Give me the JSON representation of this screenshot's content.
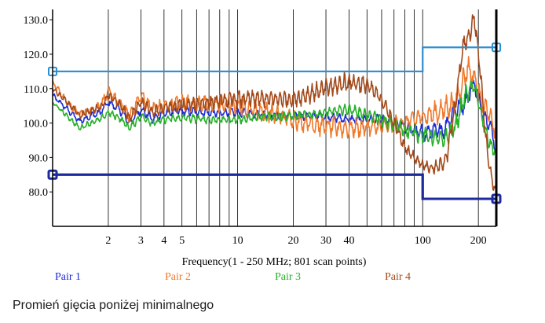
{
  "chart_data": {
    "type": "line",
    "x_scale": "log",
    "xlabel": "Frequency(1 - 250 MHz; 801 scan points)",
    "xlim": [
      1,
      250
    ],
    "ylim": [
      70,
      133
    ],
    "x_tick_labels": [
      {
        "value": 2,
        "label": "2"
      },
      {
        "value": 3,
        "label": "3"
      },
      {
        "value": 4,
        "label": "4"
      },
      {
        "value": 5,
        "label": "5"
      },
      {
        "value": 10,
        "label": "10"
      },
      {
        "value": 20,
        "label": "20"
      },
      {
        "value": 30,
        "label": "30"
      },
      {
        "value": 40,
        "label": "40"
      },
      {
        "value": 100,
        "label": "100"
      },
      {
        "value": 200,
        "label": "200"
      }
    ],
    "x_gridlines": [
      2,
      3,
      4,
      5,
      6,
      7,
      8,
      9,
      10,
      20,
      30,
      40,
      50,
      60,
      70,
      80,
      90,
      100,
      200
    ],
    "y_ticks": [
      {
        "value": 80,
        "label": "80.0"
      },
      {
        "value": 90,
        "label": "90.0"
      },
      {
        "value": 100,
        "label": "100.0"
      },
      {
        "value": 110,
        "label": "110.0"
      },
      {
        "value": 120,
        "label": "120.0"
      },
      {
        "value": 130,
        "label": "130.0"
      }
    ],
    "limit_lines": [
      {
        "name": "upper-limit",
        "color": "#2e8fd0",
        "points": [
          [
            1,
            115
          ],
          [
            100,
            115
          ],
          [
            100,
            122
          ],
          [
            250,
            122
          ]
        ]
      },
      {
        "name": "lower-limit",
        "color": "#1c2a9e",
        "points": [
          [
            1,
            85
          ],
          [
            100,
            85
          ],
          [
            100,
            78
          ],
          [
            250,
            78
          ]
        ]
      }
    ],
    "series": [
      {
        "name": "Pair 1",
        "color": "#1c2bd6",
        "anchors": [
          [
            1,
            108
          ],
          [
            1.2,
            104
          ],
          [
            1.4,
            100.5
          ],
          [
            1.6,
            102
          ],
          [
            1.8,
            103
          ],
          [
            2,
            106
          ],
          [
            2.3,
            104
          ],
          [
            2.6,
            100
          ],
          [
            3,
            104
          ],
          [
            3.5,
            101
          ],
          [
            4,
            103
          ],
          [
            5,
            103.5
          ],
          [
            7,
            103
          ],
          [
            10,
            103
          ],
          [
            15,
            102.5
          ],
          [
            20,
            102
          ],
          [
            30,
            102
          ],
          [
            40,
            101
          ],
          [
            60,
            101
          ],
          [
            80,
            99
          ],
          [
            100,
            97
          ],
          [
            130,
            98
          ],
          [
            150,
            104
          ],
          [
            170,
            106
          ],
          [
            190,
            112
          ],
          [
            210,
            103
          ],
          [
            230,
            100
          ],
          [
            250,
            92
          ]
        ],
        "ripple": [
          [
            1,
            0.8
          ],
          [
            3,
            1.4
          ],
          [
            20,
            1.2
          ],
          [
            60,
            1.4
          ],
          [
            150,
            3
          ],
          [
            250,
            2
          ]
        ]
      },
      {
        "name": "Pair 2",
        "color": "#f07a2c",
        "anchors": [
          [
            1,
            112
          ],
          [
            1.2,
            106
          ],
          [
            1.4,
            102.5
          ],
          [
            1.6,
            104
          ],
          [
            1.8,
            105
          ],
          [
            2,
            109
          ],
          [
            2.3,
            106
          ],
          [
            2.6,
            102
          ],
          [
            3,
            108
          ],
          [
            3.5,
            104
          ],
          [
            4,
            105
          ],
          [
            5,
            106
          ],
          [
            7,
            105.5
          ],
          [
            10,
            105
          ],
          [
            15,
            103
          ],
          [
            20,
            101
          ],
          [
            30,
            99
          ],
          [
            40,
            98.5
          ],
          [
            60,
            99
          ],
          [
            80,
            100
          ],
          [
            100,
            102
          ],
          [
            120,
            103
          ],
          [
            150,
            106
          ],
          [
            175,
            116
          ],
          [
            190,
            113
          ],
          [
            210,
            106
          ],
          [
            230,
            102
          ],
          [
            250,
            97
          ]
        ],
        "ripple": [
          [
            1,
            0.8
          ],
          [
            3,
            2
          ],
          [
            10,
            2.5
          ],
          [
            30,
            3
          ],
          [
            80,
            2.5
          ],
          [
            150,
            4
          ],
          [
            250,
            3
          ]
        ]
      },
      {
        "name": "Pair 3",
        "color": "#28b028",
        "anchors": [
          [
            1,
            106
          ],
          [
            1.2,
            102
          ],
          [
            1.4,
            98.5
          ],
          [
            1.6,
            100
          ],
          [
            1.8,
            101
          ],
          [
            2,
            103
          ],
          [
            2.3,
            101.5
          ],
          [
            2.6,
            98.5
          ],
          [
            3,
            102
          ],
          [
            3.5,
            100
          ],
          [
            4,
            101
          ],
          [
            5,
            101.5
          ],
          [
            7,
            101
          ],
          [
            10,
            101
          ],
          [
            15,
            102
          ],
          [
            20,
            102
          ],
          [
            30,
            103
          ],
          [
            40,
            104
          ],
          [
            60,
            101
          ],
          [
            80,
            98
          ],
          [
            100,
            96.5
          ],
          [
            130,
            95
          ],
          [
            150,
            99
          ],
          [
            170,
            108
          ],
          [
            190,
            111
          ],
          [
            210,
            101
          ],
          [
            230,
            94
          ],
          [
            250,
            91
          ]
        ],
        "ripple": [
          [
            1,
            0.6
          ],
          [
            3,
            1.2
          ],
          [
            20,
            1.3
          ],
          [
            50,
            1.6
          ],
          [
            150,
            3
          ],
          [
            250,
            2
          ]
        ]
      },
      {
        "name": "Pair 4",
        "color": "#a3491a",
        "anchors": [
          [
            1,
            110
          ],
          [
            1.2,
            106
          ],
          [
            1.4,
            102
          ],
          [
            1.6,
            103.5
          ],
          [
            1.8,
            104.5
          ],
          [
            2,
            108
          ],
          [
            2.3,
            105.5
          ],
          [
            2.6,
            101.5
          ],
          [
            3,
            106
          ],
          [
            3.5,
            103
          ],
          [
            4,
            104.5
          ],
          [
            5,
            105
          ],
          [
            7,
            106
          ],
          [
            10,
            107
          ],
          [
            15,
            107
          ],
          [
            20,
            107
          ],
          [
            30,
            110
          ],
          [
            40,
            112
          ],
          [
            50,
            111
          ],
          [
            60,
            107
          ],
          [
            70,
            100
          ],
          [
            80,
            93
          ],
          [
            90,
            90
          ],
          [
            100,
            88
          ],
          [
            110,
            87
          ],
          [
            120,
            87
          ],
          [
            135,
            90
          ],
          [
            150,
            105
          ],
          [
            165,
            122
          ],
          [
            180,
            126
          ],
          [
            190,
            131
          ],
          [
            205,
            115
          ],
          [
            220,
            95
          ],
          [
            235,
            84
          ],
          [
            250,
            80
          ]
        ],
        "ripple": [
          [
            1,
            0.8
          ],
          [
            3,
            1.6
          ],
          [
            10,
            2.5
          ],
          [
            20,
            2.5
          ],
          [
            40,
            3
          ],
          [
            60,
            2
          ],
          [
            100,
            1.5
          ],
          [
            150,
            3
          ],
          [
            250,
            2
          ]
        ]
      }
    ],
    "legend": [
      "Pair 1",
      "Pair 2",
      "Pair 3",
      "Pair 4"
    ]
  },
  "caption": "Promień gięcia poniżej minimalnego"
}
